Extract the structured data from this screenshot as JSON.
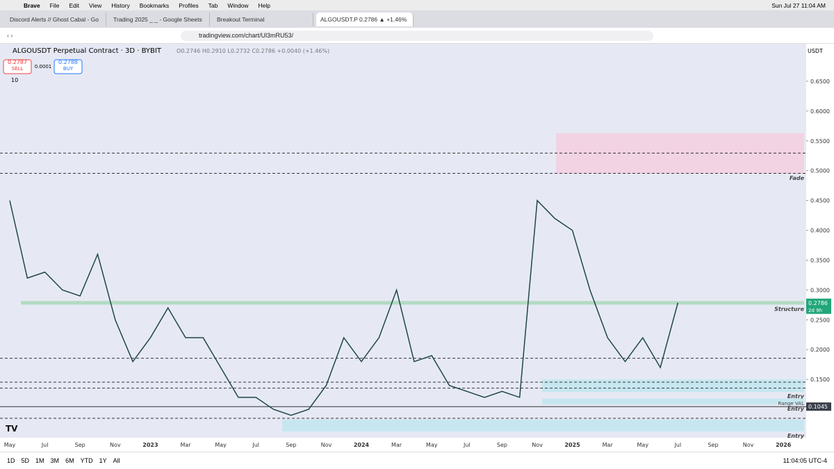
{
  "browser": {
    "menu": [
      "Brave",
      "File",
      "Edit",
      "View",
      "History",
      "Bookmarks",
      "Profiles",
      "Tab",
      "Window",
      "Help"
    ],
    "clock": "Sun Jul 27  11:04 AM",
    "tabs": [
      "Discord Alerts // Ghost Cabal - Go",
      "Trading 2025 _ _ - Google Sheets",
      "Breakout Terminal",
      "ALGOUSDT.P 0.2786 ▲ +1.46%"
    ],
    "url": "tradingview.com/chart/Ul3mRU53/"
  },
  "header": {
    "symbol": "ALGOUSDT Perpetual Contract · 3D · BYBIT",
    "ohlc": "O0.2746 H0.2910 L0.2732 C0.2786 +0.0040 (+1.46%)",
    "sell_price": "0.2787",
    "sell": "SELL",
    "spread": "0.0001",
    "buy_price": "0.2788",
    "buy": "BUY",
    "volume_label": "10",
    "currency": "USDT"
  },
  "footer": {
    "ranges": [
      "1D",
      "5D",
      "1M",
      "3M",
      "6M",
      "YTD",
      "1Y",
      "All"
    ],
    "time": "11:04:05 UTC-4"
  },
  "chart_data": {
    "type": "line",
    "categories": [
      "May",
      null,
      "Jul",
      null,
      "Sep",
      null,
      "Nov",
      null,
      "2023",
      null,
      "Mar",
      null,
      "May",
      null,
      "Jul",
      null,
      "Sep",
      null,
      "Nov",
      null,
      "2024",
      null,
      "Mar",
      null,
      "May",
      null,
      "Jul",
      null,
      "Sep",
      null,
      "Nov",
      null,
      "2025",
      null,
      "Mar",
      null,
      "May",
      null,
      "Jul",
      null,
      "Sep",
      null,
      "Nov",
      null,
      "2026"
    ],
    "series": [
      {
        "name": "ALGOUSDT",
        "color": "#1e4646",
        "values": [
          0.45,
          0.32,
          0.33,
          0.3,
          0.29,
          0.36,
          0.25,
          0.18,
          0.22,
          0.27,
          0.22,
          0.22,
          0.17,
          0.12,
          0.12,
          0.1,
          0.09,
          0.1,
          0.14,
          0.22,
          0.18,
          0.22,
          0.3,
          0.18,
          0.19,
          0.14,
          0.13,
          0.12,
          0.13,
          0.12,
          0.45,
          0.42,
          0.4,
          0.3,
          0.22,
          0.18,
          0.22,
          0.17,
          0.2786,
          null,
          null,
          null,
          null,
          null,
          null
        ]
      }
    ],
    "ylim": [
      0.05,
      0.7
    ],
    "yticks": [
      {
        "value": 0.15,
        "label": "0.1500"
      },
      {
        "value": 0.2,
        "label": "0.2000"
      },
      {
        "value": 0.25,
        "label": "0.2500"
      },
      {
        "value": 0.3,
        "label": "0.3000"
      },
      {
        "value": 0.35,
        "label": "0.3500"
      },
      {
        "value": 0.4,
        "label": "0.4000"
      },
      {
        "value": 0.45,
        "label": "0.4500"
      },
      {
        "value": 0.5,
        "label": "0.5000"
      },
      {
        "value": 0.55,
        "label": "0.5500"
      },
      {
        "value": 0.6,
        "label": "0.6000"
      },
      {
        "value": 0.65,
        "label": "0.6500"
      }
    ],
    "zones": [
      {
        "label": "Fade",
        "range": [
          0.495,
          0.563
        ],
        "color": "#f2cfe0"
      },
      {
        "label": "Structure",
        "range": [
          0.2755,
          0.2815
        ],
        "color": "#a8d8b8"
      },
      {
        "label": "Entry",
        "range": [
          0.129,
          0.15
        ],
        "color": "#bfe6ee"
      },
      {
        "label": "Entry",
        "range": [
          0.108,
          0.118
        ],
        "color": "#bfe6ee"
      },
      {
        "label": "Entry",
        "range": [
          0.063,
          0.083
        ],
        "color": "#bfe6ee"
      }
    ],
    "levels": [
      0.5295,
      0.4955,
      0.1855,
      0.1455,
      0.1355,
      0.085
    ],
    "range_val": {
      "label": "Range VAL",
      "value": 0.1045
    },
    "last_price": {
      "value": 0.2786,
      "countdown": "2d 9h"
    }
  }
}
